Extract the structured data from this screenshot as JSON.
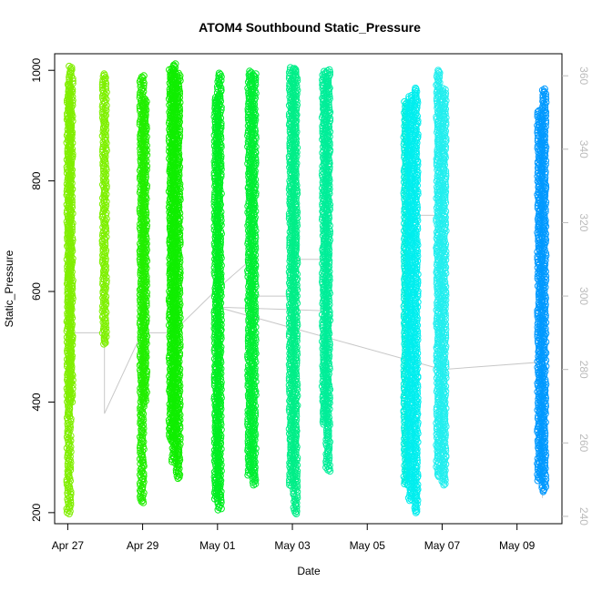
{
  "chart_data": {
    "type": "scatter",
    "title": "ATOM4 Southbound Static_Pressure",
    "xlabel": "Date",
    "ylabel": "Static_Pressure",
    "ylim": [
      180,
      1030
    ],
    "y_ticks": [
      200,
      400,
      600,
      800,
      1000
    ],
    "y2lim": [
      238,
      366
    ],
    "y2_ticks": [
      240,
      260,
      280,
      300,
      320,
      340,
      360
    ],
    "x_range_days": [
      -0.35,
      13.2
    ],
    "x_ticks": [
      {
        "day": 0,
        "label": "Apr 27"
      },
      {
        "day": 2,
        "label": "Apr 29"
      },
      {
        "day": 4,
        "label": "May 01"
      },
      {
        "day": 6,
        "label": "May 03"
      },
      {
        "day": 8,
        "label": "May 05"
      },
      {
        "day": 10,
        "label": "May 07"
      },
      {
        "day": 12,
        "label": "May 09"
      }
    ],
    "profiles": [
      {
        "day": 0.03,
        "min": 198,
        "max": 975,
        "color": "#80ee00"
      },
      {
        "day": 0.08,
        "min": 400,
        "max": 1008,
        "color": "#80ee00"
      },
      {
        "day": 0.98,
        "min": 505,
        "max": 995,
        "color": "#7ef000"
      },
      {
        "day": 1.98,
        "min": 218,
        "max": 992,
        "color": "#22ee00"
      },
      {
        "day": 2.06,
        "min": 400,
        "max": 950,
        "color": "#22ee00"
      },
      {
        "day": 2.76,
        "min": 330,
        "max": 1005,
        "color": "#10ee00"
      },
      {
        "day": 2.84,
        "min": 290,
        "max": 1012,
        "color": "#10ee00"
      },
      {
        "day": 2.95,
        "min": 262,
        "max": 995,
        "color": "#10ee00"
      },
      {
        "day": 3.97,
        "min": 225,
        "max": 955,
        "color": "#00ee22"
      },
      {
        "day": 4.05,
        "min": 205,
        "max": 995,
        "color": "#00ee22"
      },
      {
        "day": 4.86,
        "min": 268,
        "max": 1000,
        "color": "#00ee33"
      },
      {
        "day": 4.97,
        "min": 250,
        "max": 995,
        "color": "#00ee33"
      },
      {
        "day": 5.97,
        "min": 248,
        "max": 1005,
        "color": "#00ee88"
      },
      {
        "day": 6.08,
        "min": 198,
        "max": 1005,
        "color": "#00ee88"
      },
      {
        "day": 6.85,
        "min": 360,
        "max": 1000,
        "color": "#00ee99"
      },
      {
        "day": 6.95,
        "min": 275,
        "max": 1002,
        "color": "#00ee99"
      },
      {
        "day": 9.03,
        "min": 250,
        "max": 945,
        "color": "#00eedd"
      },
      {
        "day": 9.15,
        "min": 222,
        "max": 955,
        "color": "#00eeee"
      },
      {
        "day": 9.3,
        "min": 200,
        "max": 968,
        "color": "#00eeee"
      },
      {
        "day": 9.9,
        "min": 265,
        "max": 1002,
        "color": "#22eeee"
      },
      {
        "day": 10.05,
        "min": 250,
        "max": 968,
        "color": "#22eeee"
      },
      {
        "day": 12.6,
        "min": 258,
        "max": 930,
        "color": "#0099ff"
      },
      {
        "day": 12.72,
        "min": 238,
        "max": 968,
        "color": "#0099ff"
      }
    ],
    "secondary_line": {
      "color": "#c8c8c8",
      "points": [
        {
          "day": 0.03,
          "v": 278
        },
        {
          "day": 0.05,
          "v": 290
        },
        {
          "day": 0.98,
          "v": 290
        },
        {
          "day": 0.98,
          "v": 276
        },
        {
          "day": 0.98,
          "v": 268
        },
        {
          "day": 1.98,
          "v": 290
        },
        {
          "day": 2.8,
          "v": 290
        },
        {
          "day": 4.0,
          "v": 302
        },
        {
          "day": 4.9,
          "v": 310
        },
        {
          "day": 4.92,
          "v": 300
        },
        {
          "day": 6.0,
          "v": 300
        },
        {
          "day": 6.05,
          "v": 310
        },
        {
          "day": 6.9,
          "v": 310
        },
        {
          "day": 6.9,
          "v": 296
        },
        {
          "day": 4.0,
          "v": 297
        },
        {
          "day": 10.0,
          "v": 280
        },
        {
          "day": 12.65,
          "v": 282
        },
        {
          "day": 12.68,
          "v": 245
        }
      ]
    },
    "flat_segments": [
      {
        "x0": 9.15,
        "x1": 10.0,
        "y": 322
      }
    ]
  }
}
